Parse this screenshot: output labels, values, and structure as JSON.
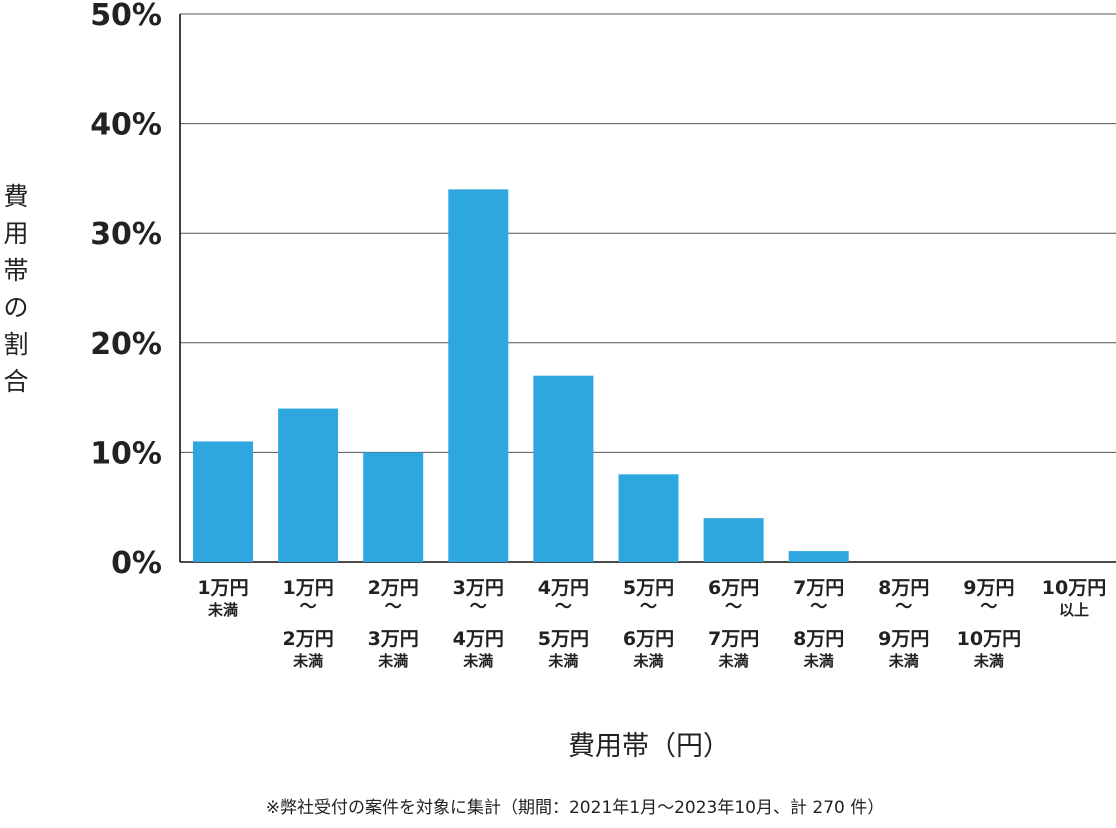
{
  "chart_data": {
    "type": "bar",
    "categories": [
      [
        "1万円",
        "未満"
      ],
      [
        "1万円",
        "～",
        "2万円",
        "未満"
      ],
      [
        "2万円",
        "～",
        "3万円",
        "未満"
      ],
      [
        "3万円",
        "～",
        "4万円",
        "未満"
      ],
      [
        "4万円",
        "～",
        "5万円",
        "未満"
      ],
      [
        "5万円",
        "～",
        "6万円",
        "未満"
      ],
      [
        "6万円",
        "～",
        "7万円",
        "未満"
      ],
      [
        "7万円",
        "～",
        "8万円",
        "未満"
      ],
      [
        "8万円",
        "～",
        "9万円",
        "未満"
      ],
      [
        "9万円",
        "～",
        "10万円",
        "未満"
      ],
      [
        "10万円",
        "以上"
      ]
    ],
    "values": [
      11,
      14,
      10,
      34,
      17,
      8,
      4,
      1,
      0,
      0,
      0
    ],
    "ylim": [
      0,
      50
    ],
    "yticks": [
      "0%",
      "10%",
      "20%",
      "30%",
      "40%",
      "50%"
    ],
    "ylabel": "費用帯の割合",
    "xlabel": "費用帯（円）",
    "grid": true,
    "bar_color": "#2ea7df",
    "footnote": "※弊社受付の案件を対象に集計（期間：2021年1月～2023年10月、計 270 件）"
  }
}
